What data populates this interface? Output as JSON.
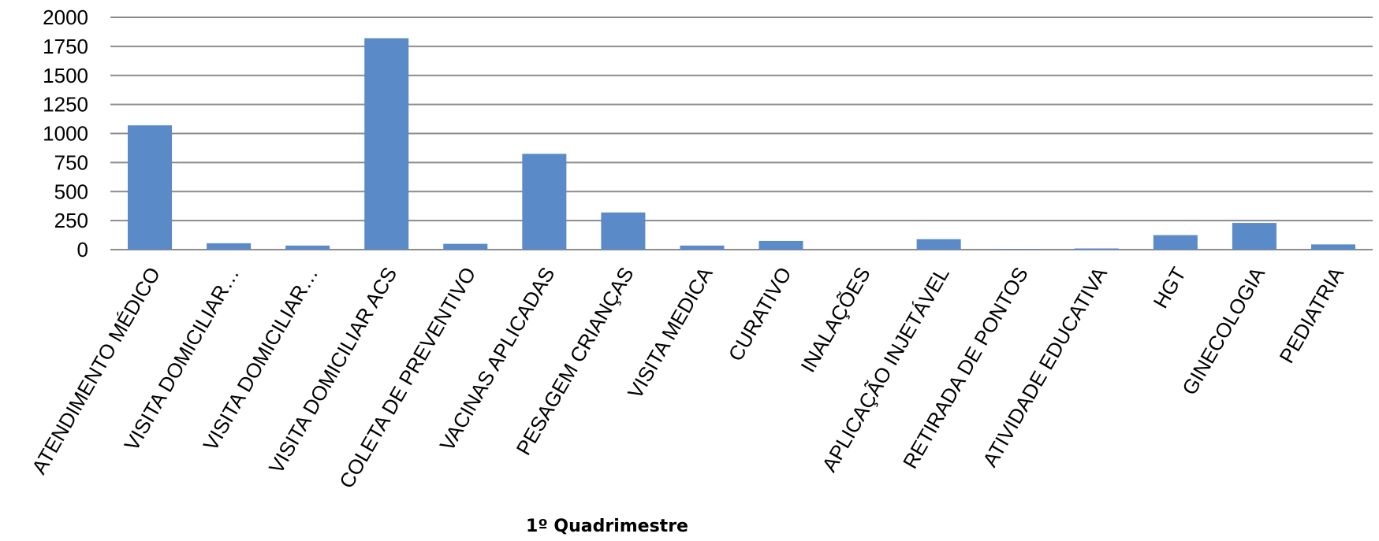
{
  "chart_data": {
    "type": "bar",
    "title": "",
    "xlabel": "1º Quadrimestre",
    "ylabel": "",
    "ylim": [
      0,
      2000
    ],
    "yticks": [
      0,
      250,
      500,
      750,
      1000,
      1250,
      1500,
      1750,
      2000
    ],
    "grid": true,
    "legend": "none",
    "bar_color": "#5B8AC8",
    "grid_color": "#8C8C8C",
    "categories": [
      "ATENDIMENTO MÉDICO",
      "VISITA DOMICILIAR…",
      "VISITA DOMICILIAR…",
      "VISITA DOMICILIAR ACS",
      "COLETA DE PREVENTIVO",
      "VACINAS APLICADAS",
      "PESAGEM  CRIANÇAS",
      "VISITA MEDICA",
      "CURATIVO",
      "INALAÇÕES",
      "APLICAÇÃO INJETÁVEL",
      "RETIRADA DE PONTOS",
      "ATIVIDADE EDUCATIVA",
      "HGT",
      "GINECOLOGIA",
      "PEDIATRIA"
    ],
    "values": [
      1070,
      55,
      35,
      1820,
      50,
      825,
      320,
      35,
      75,
      0,
      90,
      5,
      10,
      125,
      230,
      45
    ]
  }
}
